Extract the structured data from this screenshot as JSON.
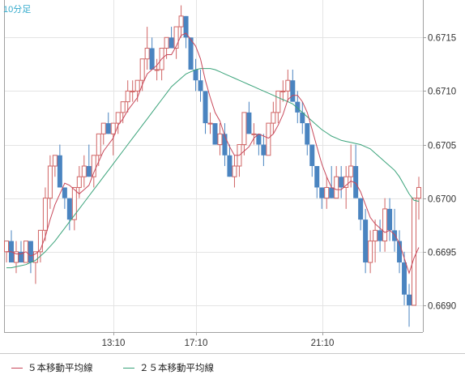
{
  "timeframe_label": "10分足",
  "legend": [
    {
      "label": "５本移動平均線",
      "color": "#c8485a"
    },
    {
      "label": "２５本移動平均線",
      "color": "#3aa37a"
    }
  ],
  "colors": {
    "up": "#d06464",
    "down": "#4a84c0",
    "grid": "#e4e4e4",
    "axis": "#a0a0a0"
  },
  "chart_data": {
    "type": "candlestick",
    "instrument_interval": "10分足",
    "x_ticks": [
      "13:10",
      "17:10",
      "21:10"
    ],
    "y_ticks": [
      "0.6715",
      "0.6710",
      "0.6705",
      "0.6700",
      "0.6695",
      "0.6690"
    ],
    "ylim": [
      0.66875,
      0.67185
    ],
    "grid": true,
    "candles": [
      [
        0.6695,
        0.6696,
        0.6694,
        0.6696
      ],
      [
        0.6696,
        0.6697,
        0.6694,
        0.6694
      ],
      [
        0.6694,
        0.6696,
        0.6693,
        0.6695
      ],
      [
        0.6695,
        0.6696,
        0.6694,
        0.6694
      ],
      [
        0.6694,
        0.6696,
        0.6694,
        0.6696
      ],
      [
        0.6696,
        0.6696,
        0.6693,
        0.6694
      ],
      [
        0.6694,
        0.6695,
        0.6692,
        0.6695
      ],
      [
        0.6695,
        0.6697,
        0.6694,
        0.6697
      ],
      [
        0.6697,
        0.6701,
        0.6696,
        0.67
      ],
      [
        0.67,
        0.6704,
        0.6699,
        0.6703
      ],
      [
        0.6703,
        0.6704,
        0.6702,
        0.6704
      ],
      [
        0.6704,
        0.6705,
        0.6701,
        0.6701
      ],
      [
        0.6701,
        0.6701,
        0.6699,
        0.67
      ],
      [
        0.67,
        0.67,
        0.6697,
        0.6698
      ],
      [
        0.6698,
        0.6701,
        0.6697,
        0.6701
      ],
      [
        0.6701,
        0.6703,
        0.67,
        0.6702
      ],
      [
        0.6702,
        0.6704,
        0.6701,
        0.6703
      ],
      [
        0.6703,
        0.6705,
        0.6702,
        0.6702
      ],
      [
        0.6702,
        0.6704,
        0.6701,
        0.6704
      ],
      [
        0.6704,
        0.6706,
        0.6703,
        0.6706
      ],
      [
        0.6706,
        0.6707,
        0.6705,
        0.6707
      ],
      [
        0.6707,
        0.6708,
        0.6706,
        0.6706
      ],
      [
        0.6706,
        0.6707,
        0.6704,
        0.6707
      ],
      [
        0.6707,
        0.6708,
        0.6706,
        0.6708
      ],
      [
        0.6708,
        0.6709,
        0.6707,
        0.6709
      ],
      [
        0.6709,
        0.6711,
        0.6708,
        0.671
      ],
      [
        0.671,
        0.6711,
        0.6709,
        0.671
      ],
      [
        0.671,
        0.6711,
        0.6709,
        0.6711
      ],
      [
        0.6711,
        0.6713,
        0.671,
        0.6713
      ],
      [
        0.6713,
        0.6716,
        0.6712,
        0.6714
      ],
      [
        0.6714,
        0.6715,
        0.6712,
        0.6712
      ],
      [
        0.6712,
        0.6713,
        0.6711,
        0.6712
      ],
      [
        0.6712,
        0.6714,
        0.6711,
        0.6714
      ],
      [
        0.6714,
        0.6715,
        0.6713,
        0.6715
      ],
      [
        0.6715,
        0.6716,
        0.6714,
        0.6714
      ],
      [
        0.6714,
        0.6716,
        0.6713,
        0.6716
      ],
      [
        0.6716,
        0.6718,
        0.6715,
        0.6717
      ],
      [
        0.6717,
        0.6717,
        0.6714,
        0.6715
      ],
      [
        0.6715,
        0.6715,
        0.6712,
        0.6712
      ],
      [
        0.6712,
        0.6713,
        0.671,
        0.6711
      ],
      [
        0.6711,
        0.6712,
        0.6709,
        0.671
      ],
      [
        0.671,
        0.671,
        0.6706,
        0.6707
      ],
      [
        0.6707,
        0.6708,
        0.6706,
        0.6707
      ],
      [
        0.6707,
        0.6707,
        0.6705,
        0.6705
      ],
      [
        0.6705,
        0.6707,
        0.6704,
        0.6706
      ],
      [
        0.6706,
        0.6707,
        0.6703,
        0.6704
      ],
      [
        0.6704,
        0.6705,
        0.6702,
        0.6702
      ],
      [
        0.6702,
        0.6704,
        0.6701,
        0.6703
      ],
      [
        0.6703,
        0.6705,
        0.6702,
        0.6705
      ],
      [
        0.6705,
        0.6708,
        0.6704,
        0.6708
      ],
      [
        0.6708,
        0.6709,
        0.6706,
        0.6706
      ],
      [
        0.6706,
        0.6707,
        0.6705,
        0.6706
      ],
      [
        0.6706,
        0.6706,
        0.6704,
        0.6705
      ],
      [
        0.6705,
        0.6706,
        0.6703,
        0.6704
      ],
      [
        0.6704,
        0.6707,
        0.6704,
        0.6707
      ],
      [
        0.6707,
        0.6709,
        0.6706,
        0.6708
      ],
      [
        0.6708,
        0.671,
        0.6707,
        0.671
      ],
      [
        0.671,
        0.6711,
        0.6709,
        0.671
      ],
      [
        0.671,
        0.6712,
        0.6709,
        0.6711
      ],
      [
        0.6711,
        0.6712,
        0.6709,
        0.6709
      ],
      [
        0.6709,
        0.671,
        0.6707,
        0.6708
      ],
      [
        0.6708,
        0.6709,
        0.6706,
        0.6707
      ],
      [
        0.6707,
        0.6707,
        0.6704,
        0.6705
      ],
      [
        0.6705,
        0.6705,
        0.6702,
        0.6703
      ],
      [
        0.6703,
        0.6703,
        0.67,
        0.6701
      ],
      [
        0.6701,
        0.6701,
        0.6699,
        0.67
      ],
      [
        0.67,
        0.6702,
        0.6699,
        0.6701
      ],
      [
        0.6701,
        0.6703,
        0.67,
        0.67
      ],
      [
        0.67,
        0.6703,
        0.67,
        0.6702
      ],
      [
        0.6702,
        0.6703,
        0.67,
        0.6701
      ],
      [
        0.6701,
        0.6703,
        0.6699,
        0.6702
      ],
      [
        0.6702,
        0.6705,
        0.6701,
        0.6703
      ],
      [
        0.6703,
        0.6705,
        0.67,
        0.67
      ],
      [
        0.67,
        0.67,
        0.6697,
        0.6698
      ],
      [
        0.6698,
        0.6699,
        0.6693,
        0.6694
      ],
      [
        0.6694,
        0.6697,
        0.6693,
        0.6696
      ],
      [
        0.6696,
        0.6698,
        0.6694,
        0.6697
      ],
      [
        0.6697,
        0.6698,
        0.6695,
        0.6696
      ],
      [
        0.6696,
        0.67,
        0.6695,
        0.6699
      ],
      [
        0.6699,
        0.67,
        0.6696,
        0.6697
      ],
      [
        0.6697,
        0.6699,
        0.6695,
        0.6696
      ],
      [
        0.6696,
        0.6697,
        0.6693,
        0.6694
      ],
      [
        0.6694,
        0.6695,
        0.669,
        0.6691
      ],
      [
        0.6691,
        0.6692,
        0.6688,
        0.669
      ],
      [
        0.669,
        0.67,
        0.669,
        0.67
      ],
      [
        0.67,
        0.6702,
        0.6698,
        0.6701
      ]
    ],
    "ma5": [
      0.6695,
      0.6695,
      0.66948,
      0.66948,
      0.6695,
      0.66946,
      0.66948,
      0.66952,
      0.66964,
      0.6698,
      0.66994,
      0.67004,
      0.67014,
      0.67012,
      0.67008,
      0.67004,
      0.67008,
      0.67012,
      0.67024,
      0.67034,
      0.67044,
      0.6705,
      0.67056,
      0.67068,
      0.67074,
      0.67082,
      0.67088,
      0.67094,
      0.67106,
      0.67116,
      0.6712,
      0.67124,
      0.6713,
      0.67134,
      0.67134,
      0.67142,
      0.67152,
      0.67154,
      0.67148,
      0.67142,
      0.6713,
      0.6711,
      0.67094,
      0.6708,
      0.67072,
      0.67058,
      0.67048,
      0.6704,
      0.6704,
      0.67044,
      0.67048,
      0.67056,
      0.6706,
      0.67058,
      0.67056,
      0.6706,
      0.67068,
      0.67078,
      0.67092,
      0.67096,
      0.67096,
      0.6709,
      0.6708,
      0.67064,
      0.67048,
      0.67032,
      0.6702,
      0.6701,
      0.67008,
      0.67008,
      0.67012,
      0.67016,
      0.67014,
      0.67006,
      0.66994,
      0.66982,
      0.66976,
      0.66972,
      0.66968,
      0.6697,
      0.66966,
      0.66958,
      0.66944,
      0.6693,
      0.66944,
      0.66954
    ],
    "ma25": [
      0.66935,
      0.66935,
      0.66936,
      0.66937,
      0.66938,
      0.6694,
      0.66942,
      0.66946,
      0.6695,
      0.66955,
      0.6696,
      0.66966,
      0.66972,
      0.66978,
      0.66984,
      0.6699,
      0.66996,
      0.67002,
      0.67008,
      0.67014,
      0.6702,
      0.67026,
      0.67032,
      0.67038,
      0.67044,
      0.6705,
      0.67056,
      0.67062,
      0.67068,
      0.67074,
      0.6708,
      0.67086,
      0.67092,
      0.67098,
      0.67104,
      0.67108,
      0.67112,
      0.67116,
      0.67118,
      0.6712,
      0.67121,
      0.67121,
      0.67121,
      0.6712,
      0.67118,
      0.67116,
      0.67114,
      0.67112,
      0.6711,
      0.67108,
      0.67106,
      0.67104,
      0.67102,
      0.671,
      0.67098,
      0.67096,
      0.67094,
      0.67092,
      0.6709,
      0.67088,
      0.67084,
      0.6708,
      0.67076,
      0.67072,
      0.67068,
      0.67064,
      0.67061,
      0.67058,
      0.67056,
      0.67054,
      0.67053,
      0.67052,
      0.67051,
      0.6705,
      0.67048,
      0.67046,
      0.67042,
      0.67038,
      0.67034,
      0.6703,
      0.67026,
      0.6702,
      0.67012,
      0.67004,
      0.66998,
      0.66997
    ]
  }
}
